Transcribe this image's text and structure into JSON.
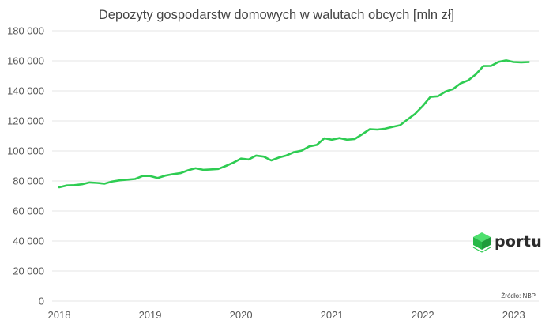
{
  "chart_data": {
    "type": "line",
    "title": "Depozyty gospodarstw domowych w walutach obcych [mln zł]",
    "xlabel": "",
    "ylabel": "",
    "ylim": [
      0,
      180000
    ],
    "yticks": [
      0,
      20000,
      40000,
      60000,
      80000,
      100000,
      120000,
      140000,
      160000,
      180000
    ],
    "ytick_labels": [
      "0",
      "20 000",
      "40 000",
      "60 000",
      "80 000",
      "100 000",
      "120 000",
      "140 000",
      "160 000",
      "180 000"
    ],
    "xticks": [
      2018,
      2019,
      2020,
      2021,
      2022,
      2023
    ],
    "xtick_labels": [
      "2018",
      "2019",
      "2020",
      "2021",
      "2022",
      "2023"
    ],
    "grid": "horizontal",
    "legend": "none",
    "line_color": "#2ecc52",
    "series": [
      {
        "x": [
          "2018-01",
          "2018-02",
          "2018-03",
          "2018-04",
          "2018-05",
          "2018-06",
          "2018-07",
          "2018-08",
          "2018-09",
          "2018-10",
          "2018-11",
          "2018-12",
          "2019-01",
          "2019-02",
          "2019-03",
          "2019-04",
          "2019-05",
          "2019-06",
          "2019-07",
          "2019-08",
          "2019-09",
          "2019-10",
          "2019-11",
          "2019-12",
          "2020-01",
          "2020-02",
          "2020-03",
          "2020-04",
          "2020-05",
          "2020-06",
          "2020-07",
          "2020-08",
          "2020-09",
          "2020-10",
          "2020-11",
          "2020-12",
          "2021-01",
          "2021-02",
          "2021-03",
          "2021-04",
          "2021-05",
          "2021-06",
          "2021-07",
          "2021-08",
          "2021-09",
          "2021-10",
          "2021-11",
          "2021-12",
          "2022-01",
          "2022-02",
          "2022-03",
          "2022-04",
          "2022-05",
          "2022-06",
          "2022-07",
          "2022-08",
          "2022-09",
          "2022-10",
          "2022-11",
          "2022-12",
          "2023-01",
          "2023-02",
          "2023-03"
        ],
        "values": [
          75800,
          77000,
          77200,
          77800,
          79000,
          78700,
          78200,
          79700,
          80400,
          80900,
          81300,
          83300,
          83300,
          82000,
          83600,
          84500,
          85200,
          87100,
          88500,
          87400,
          87700,
          88000,
          90000,
          92200,
          94900,
          94300,
          96900,
          96200,
          93700,
          95600,
          97000,
          99200,
          100200,
          103000,
          104000,
          108400,
          107500,
          108600,
          107500,
          107900,
          111100,
          114500,
          114200,
          114800,
          116000,
          117100,
          121000,
          124800,
          130000,
          136000,
          136400,
          139500,
          141200,
          145000,
          147000,
          151000,
          156500,
          156600,
          159300,
          160300,
          159200,
          159000,
          159200
        ]
      }
    ]
  },
  "source_note": "Źródło: NBP",
  "logo": {
    "text": "portu",
    "icon": "cube-logo-icon",
    "color": "#2ecc52"
  }
}
